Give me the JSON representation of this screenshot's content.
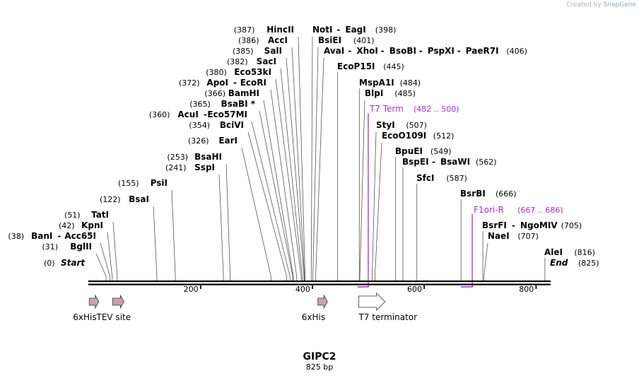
{
  "watermark": {
    "prefix": "Created by",
    "brand": "SnapGene"
  },
  "sequence": {
    "name": "GIPC2",
    "length_label": "825 bp",
    "length": 825
  },
  "axis": {
    "ticks": [
      200,
      400,
      600,
      800
    ]
  },
  "ends": {
    "start": {
      "label": "Start",
      "pos": "(0)"
    },
    "end": {
      "label": "End",
      "pos": "(825)"
    }
  },
  "sites": [
    {
      "id": "bglii",
      "names": [
        "BglII"
      ],
      "pos": 31,
      "label_pos": "(31)"
    },
    {
      "id": "bani",
      "names": [
        "BanI",
        "Acc65I"
      ],
      "pos": 38,
      "label_pos": "(38)"
    },
    {
      "id": "kpni",
      "names": [
        "KpnI"
      ],
      "pos": 42,
      "label_pos": "(42)"
    },
    {
      "id": "tati",
      "names": [
        "TatI"
      ],
      "pos": 51,
      "label_pos": "(51)"
    },
    {
      "id": "bsai",
      "names": [
        "BsaI"
      ],
      "pos": 122,
      "label_pos": "(122)"
    },
    {
      "id": "psii",
      "names": [
        "PsiI"
      ],
      "pos": 155,
      "label_pos": "(155)"
    },
    {
      "id": "sspi",
      "names": [
        "SspI"
      ],
      "pos": 241,
      "label_pos": "(241)"
    },
    {
      "id": "bsahi",
      "names": [
        "BsaHI"
      ],
      "pos": 253,
      "label_pos": "(253)"
    },
    {
      "id": "eari",
      "names": [
        "EarI"
      ],
      "pos": 326,
      "label_pos": "(326)"
    },
    {
      "id": "bcivi",
      "names": [
        "BciVI"
      ],
      "pos": 354,
      "label_pos": "(354)"
    },
    {
      "id": "acui",
      "names": [
        "AcuI",
        "Eco57MI"
      ],
      "pos": 360,
      "label_pos": "(360)"
    },
    {
      "id": "bsabi",
      "names": [
        "BsaBI *"
      ],
      "pos": 365,
      "label_pos": "(365)"
    },
    {
      "id": "bamhi",
      "names": [
        "BamHI"
      ],
      "pos": 366,
      "label_pos": "(366)"
    },
    {
      "id": "apoi",
      "names": [
        "ApoI",
        "EcoRI"
      ],
      "pos": 372,
      "label_pos": "(372)"
    },
    {
      "id": "eco53ki",
      "names": [
        "Eco53kI"
      ],
      "pos": 380,
      "label_pos": "(380)"
    },
    {
      "id": "saci",
      "names": [
        "SacI"
      ],
      "pos": 382,
      "label_pos": "(382)"
    },
    {
      "id": "sali",
      "names": [
        "SalI"
      ],
      "pos": 385,
      "label_pos": "(385)"
    },
    {
      "id": "acci",
      "names": [
        "AccI"
      ],
      "pos": 386,
      "label_pos": "(386)"
    },
    {
      "id": "hincii",
      "names": [
        "HincII"
      ],
      "pos": 387,
      "label_pos": "(387)"
    },
    {
      "id": "noti",
      "names": [
        "NotI",
        "EagI"
      ],
      "pos": 398,
      "label_pos": "(398)"
    },
    {
      "id": "bsiei",
      "names": [
        "BsiEI"
      ],
      "pos": 401,
      "label_pos": "(401)"
    },
    {
      "id": "avai",
      "names": [
        "AvaI",
        "XhoI",
        "BsoBI",
        "PspXI",
        "PaeR7I"
      ],
      "pos": 406,
      "label_pos": "(406)"
    },
    {
      "id": "ecop15i",
      "names": [
        "EcoP15I"
      ],
      "pos": 445,
      "label_pos": "(445)"
    },
    {
      "id": "mspa1i",
      "names": [
        "MspA1I"
      ],
      "pos": 484,
      "label_pos": "(484)"
    },
    {
      "id": "blpi",
      "names": [
        "BlpI"
      ],
      "pos": 485,
      "label_pos": "(485)"
    },
    {
      "id": "styi",
      "names": [
        "StyI"
      ],
      "pos": 507,
      "label_pos": "(507)"
    },
    {
      "id": "ecoo109i",
      "names": [
        "EcoO109I"
      ],
      "pos": 512,
      "label_pos": "(512)"
    },
    {
      "id": "bpuei",
      "names": [
        "BpuEI"
      ],
      "pos": 549,
      "label_pos": "(549)"
    },
    {
      "id": "bspei",
      "names": [
        "BspEI",
        "BsaWI"
      ],
      "pos": 562,
      "label_pos": "(562)"
    },
    {
      "id": "sfci",
      "names": [
        "SfcI"
      ],
      "pos": 587,
      "label_pos": "(587)"
    },
    {
      "id": "bsrbi",
      "names": [
        "BsrBI"
      ],
      "pos": 666,
      "label_pos": "(666)"
    },
    {
      "id": "bsrfi",
      "names": [
        "BsrFI",
        "NgoMIV"
      ],
      "pos": 705,
      "label_pos": "(705)"
    },
    {
      "id": "naei",
      "names": [
        "NaeI"
      ],
      "pos": 707,
      "label_pos": "(707)"
    },
    {
      "id": "alei",
      "names": [
        "AleI"
      ],
      "pos": 816,
      "label_pos": "(816)"
    }
  ],
  "primers": [
    {
      "id": "t7term",
      "name": "T7 Term",
      "range_label": "(482 .. 500)",
      "start": 482,
      "end": 500
    },
    {
      "id": "f1ori",
      "name": "F1ori-R",
      "range_label": "(667 .. 686)",
      "start": 667,
      "end": 686
    }
  ],
  "features": [
    {
      "id": "his1",
      "name": "6xHis",
      "start": 1,
      "end": 18,
      "color": "#c8a2b4"
    },
    {
      "id": "tev",
      "name": "TEV site",
      "start": 43,
      "end": 63,
      "color": "#c8a2b4"
    },
    {
      "id": "his2",
      "name": "6xHis",
      "start": 410,
      "end": 427,
      "color": "#c8a2b4"
    },
    {
      "id": "t7",
      "name": "T7 terminator",
      "start": 483,
      "end": 530,
      "color": "#ffffff"
    }
  ],
  "colors": {
    "primer": "#a52fcf",
    "line": "#555555"
  }
}
